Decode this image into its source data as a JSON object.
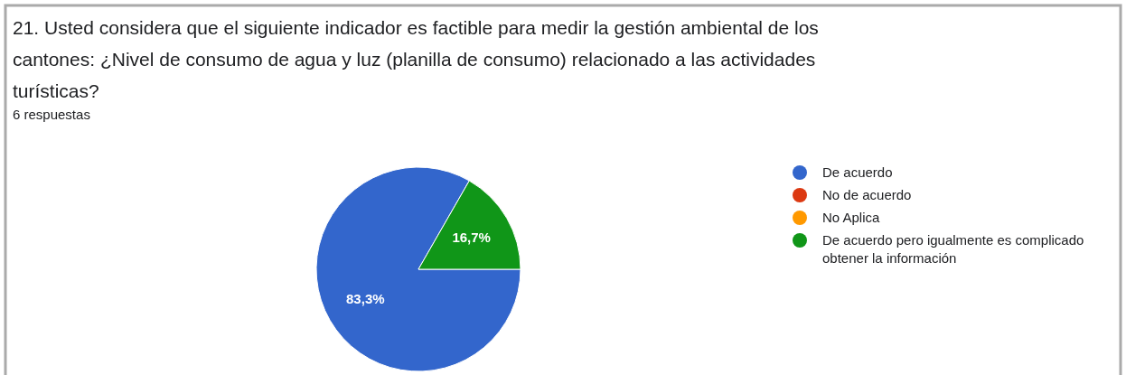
{
  "chart_data": {
    "type": "pie",
    "title": "21. Usted considera que el siguiente indicador es factible para medir la gestión ambiental de los cantones: ¿Nivel de consumo de agua y luz (planilla de consumo) relacionado a las actividades turísticas?",
    "subtitle": "6 respuestas",
    "categories": [
      "De acuerdo",
      "No de acuerdo",
      "No Aplica",
      "De acuerdo pero igualmente es complicado obtener la información"
    ],
    "values": [
      83.3,
      0,
      0,
      16.7
    ],
    "colors": [
      "#3366cc",
      "#dc3912",
      "#ff9900",
      "#109618"
    ],
    "value_labels": [
      "83,3%",
      null,
      null,
      "16,7%"
    ],
    "legend": "right"
  }
}
